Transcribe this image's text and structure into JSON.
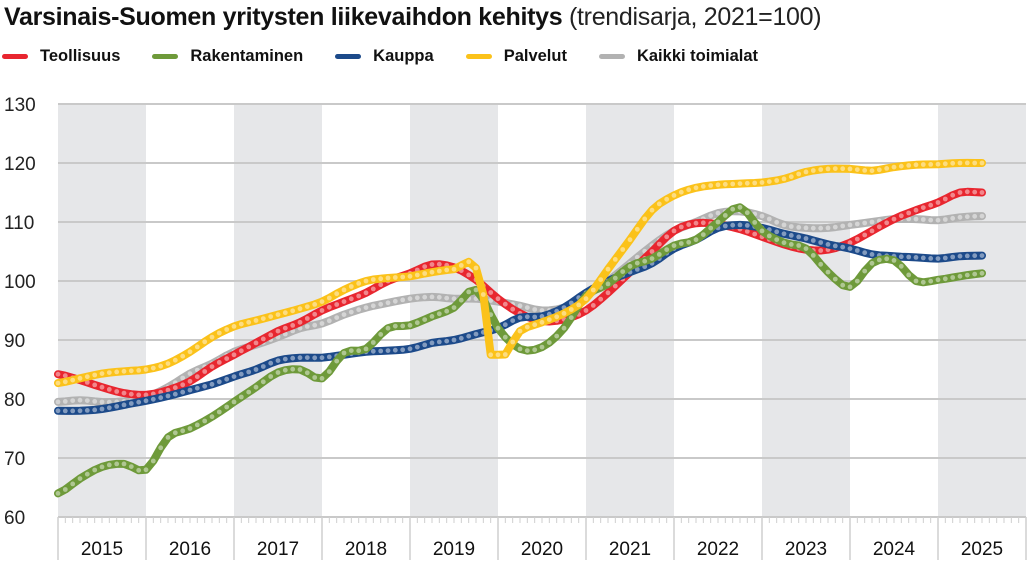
{
  "title": {
    "main": "Varsinais-Suomen yritysten liikevaihdon kehitys",
    "sub": "(trendisarja, 2021=100)"
  },
  "chart_data": {
    "type": "line",
    "title": "Varsinais-Suomen yritysten liikevaihdon kehitys (trendisarja, 2021=100)",
    "xlabel": "",
    "ylabel": "",
    "ylim": [
      60,
      130
    ],
    "yticks": [
      60,
      70,
      80,
      90,
      100,
      110,
      120,
      130
    ],
    "xlim": [
      2015.0,
      2026.0
    ],
    "xticks": [
      "2015",
      "2016",
      "2017",
      "2018",
      "2019",
      "2020",
      "2021",
      "2022",
      "2023",
      "2024",
      "2025"
    ],
    "grid": true,
    "legend": "top-left",
    "alternating_year_shading": true,
    "x": [
      2015.0,
      2015.25,
      2015.5,
      2015.75,
      2016.0,
      2016.25,
      2016.5,
      2016.75,
      2017.0,
      2017.25,
      2017.5,
      2017.75,
      2018.0,
      2018.25,
      2018.5,
      2018.75,
      2019.0,
      2019.25,
      2019.5,
      2019.75,
      2020.0,
      2020.25,
      2020.5,
      2020.75,
      2021.0,
      2021.25,
      2021.5,
      2021.75,
      2022.0,
      2022.25,
      2022.5,
      2022.75,
      2023.0,
      2023.25,
      2023.5,
      2023.75,
      2024.0,
      2024.25,
      2024.5,
      2024.75,
      2025.0,
      2025.25,
      2025.5
    ],
    "series": [
      {
        "name": "Teollisuus",
        "color": "#e8262f",
        "values": [
          84.2,
          83.2,
          82.0,
          81.0,
          80.7,
          81.5,
          83.0,
          85.5,
          87.5,
          89.5,
          91.5,
          93.0,
          95.0,
          96.5,
          98.0,
          100.0,
          101.3,
          102.8,
          102.3,
          100.2,
          97.0,
          94.5,
          93.2,
          93.5,
          95.0,
          98.0,
          101.5,
          105.0,
          108.5,
          109.8,
          109.6,
          108.8,
          107.5,
          106.2,
          105.3,
          105.3,
          106.5,
          108.5,
          110.5,
          112.0,
          113.3,
          115.0,
          115.0
        ]
      },
      {
        "name": "Rakentaminen",
        "color": "#6e9a3a",
        "values": [
          64.0,
          66.5,
          68.5,
          69.0,
          68.0,
          73.5,
          75.0,
          77.0,
          79.5,
          82.0,
          84.5,
          85.0,
          83.5,
          87.8,
          88.5,
          92.0,
          92.5,
          94.0,
          95.5,
          98.5,
          92.0,
          88.5,
          88.8,
          92.0,
          97.5,
          99.5,
          102.5,
          103.8,
          106.0,
          107.0,
          110.0,
          112.5,
          108.5,
          106.5,
          105.5,
          101.5,
          99.0,
          103.0,
          103.5,
          100.0,
          100.2,
          100.8,
          101.3
        ]
      },
      {
        "name": "Kauppa",
        "color": "#1c4a8a",
        "values": [
          78.0,
          78.0,
          78.3,
          79.0,
          79.7,
          80.5,
          81.5,
          82.5,
          83.8,
          85.0,
          86.5,
          87.0,
          87.0,
          87.5,
          88.0,
          88.2,
          88.5,
          89.5,
          90.0,
          91.0,
          92.0,
          93.8,
          94.0,
          95.5,
          98.0,
          100.0,
          101.5,
          103.0,
          105.5,
          107.0,
          109.0,
          109.5,
          109.0,
          108.0,
          107.2,
          106.2,
          105.5,
          104.5,
          104.2,
          104.0,
          103.8,
          104.2,
          104.3
        ]
      },
      {
        "name": "Palvelut",
        "color": "#fbc21a",
        "values": [
          82.7,
          83.5,
          84.3,
          84.7,
          85.0,
          86.0,
          88.0,
          90.5,
          92.3,
          93.3,
          94.3,
          95.3,
          96.5,
          98.5,
          100.0,
          100.5,
          100.8,
          101.5,
          102.0,
          102.2,
          87.5,
          91.5,
          93.0,
          94.5,
          97.0,
          102.0,
          107.0,
          112.0,
          114.5,
          115.8,
          116.3,
          116.5,
          116.7,
          117.3,
          118.5,
          119.0,
          119.0,
          118.7,
          119.3,
          119.7,
          119.8,
          120.0,
          120.0
        ]
      },
      {
        "name": "Kaikki toimialat",
        "color": "#b2b2b2",
        "values": [
          79.5,
          79.8,
          79.5,
          79.6,
          80.3,
          82.0,
          84.3,
          86.0,
          88.0,
          89.2,
          90.5,
          92.0,
          92.8,
          94.3,
          95.5,
          96.3,
          97.0,
          97.3,
          97.0,
          97.0,
          96.5,
          95.8,
          95.0,
          95.5,
          97.5,
          100.0,
          103.0,
          106.0,
          108.5,
          110.0,
          111.5,
          111.8,
          111.0,
          109.5,
          109.0,
          109.0,
          109.5,
          110.0,
          110.5,
          110.5,
          110.3,
          110.8,
          111.0
        ]
      }
    ]
  }
}
